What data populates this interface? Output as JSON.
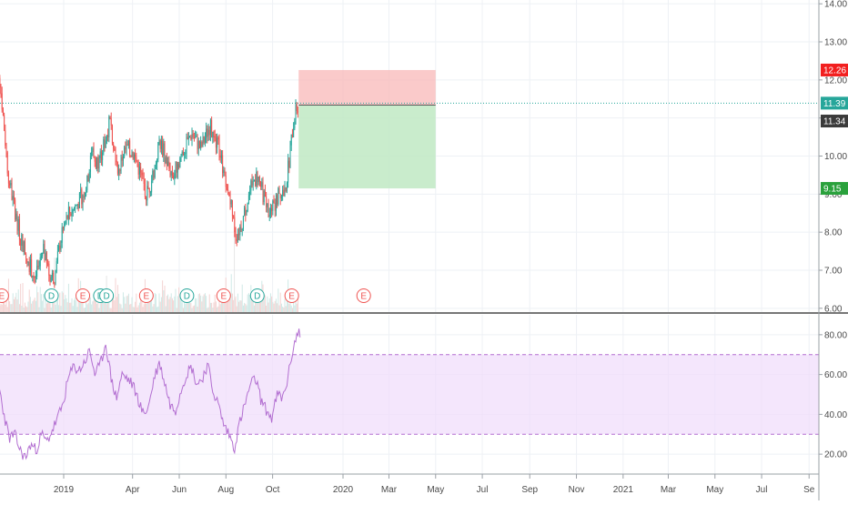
{
  "colors": {
    "up": "#26a69a",
    "down": "#ef5350",
    "rsi_line": "#b36fd1",
    "rsi_band": "#efdcfb",
    "stop_zone": "#f8b8b8",
    "target_zone": "#bfe9c3",
    "price_line": "#26a69a",
    "grid": "#eef1f5",
    "axis_text": "#4a4a4a",
    "event_earnings": "#ef5350",
    "event_dividend": "#26a69a"
  },
  "chart_data": [
    {
      "type": "candlestick",
      "ylim": [
        5.9,
        14.1
      ],
      "yticks": [
        {
          "value": 14,
          "label": "14.00"
        },
        {
          "value": 13,
          "label": "13.00"
        },
        {
          "value": 12,
          "label": "12.00"
        },
        {
          "value": 11,
          "label": "11.00"
        },
        {
          "value": 10,
          "label": "10.00"
        },
        {
          "value": 9,
          "label": "9.00"
        },
        {
          "value": 8,
          "label": "8.00"
        },
        {
          "value": 7,
          "label": "7.00"
        },
        {
          "value": 6,
          "label": "6.00"
        }
      ],
      "xaxis": {
        "ticks": [
          {
            "date": "2019-01-01",
            "label": "2019"
          },
          {
            "date": "2019-04-01",
            "label": "Apr"
          },
          {
            "date": "2019-06-01",
            "label": "Jun"
          },
          {
            "date": "2019-08-01",
            "label": "Aug"
          },
          {
            "date": "2019-10-01",
            "label": "Oct"
          },
          {
            "date": "2020-01-01",
            "label": "2020"
          },
          {
            "date": "2020-03-01",
            "label": "Mar"
          },
          {
            "date": "2020-05-01",
            "label": "May"
          },
          {
            "date": "2020-07-01",
            "label": "Jul"
          },
          {
            "date": "2020-09-01",
            "label": "Sep"
          },
          {
            "date": "2020-11-01",
            "label": "Nov"
          },
          {
            "date": "2021-01-01",
            "label": "2021"
          },
          {
            "date": "2021-03-01",
            "label": "Mar"
          },
          {
            "date": "2021-05-01",
            "label": "May"
          },
          {
            "date": "2021-07-01",
            "label": "Jul"
          },
          {
            "date": "2021-09-01",
            "label": "Se"
          }
        ]
      },
      "close_series": {
        "name": "",
        "points": [
          [
            "2018-10-01",
            13.2
          ],
          [
            "2018-10-05",
            12.7
          ],
          [
            "2018-10-10",
            11.9
          ],
          [
            "2018-10-15",
            10.8
          ],
          [
            "2018-10-20",
            9.6
          ],
          [
            "2018-10-25",
            9.0
          ],
          [
            "2018-10-30",
            8.5
          ],
          [
            "2018-11-05",
            7.9
          ],
          [
            "2018-11-10",
            7.6
          ],
          [
            "2018-11-15",
            7.3
          ],
          [
            "2018-11-20",
            7.0
          ],
          [
            "2018-11-25",
            6.8
          ],
          [
            "2018-12-01",
            7.1
          ],
          [
            "2018-12-06",
            7.5
          ],
          [
            "2018-12-11",
            7.0
          ],
          [
            "2018-12-16",
            6.8
          ],
          [
            "2018-12-21",
            6.9
          ],
          [
            "2018-12-27",
            7.7
          ],
          [
            "2019-01-02",
            8.2
          ],
          [
            "2019-01-08",
            8.5
          ],
          [
            "2019-01-14",
            8.6
          ],
          [
            "2019-01-20",
            8.8
          ],
          [
            "2019-01-26",
            9.0
          ],
          [
            "2019-02-01",
            9.3
          ],
          [
            "2019-02-06",
            10.2
          ],
          [
            "2019-02-12",
            9.8
          ],
          [
            "2019-02-18",
            10.0
          ],
          [
            "2019-02-24",
            10.4
          ],
          [
            "2019-03-02",
            10.9
          ],
          [
            "2019-03-08",
            10.3
          ],
          [
            "2019-03-14",
            9.6
          ],
          [
            "2019-03-20",
            10.1
          ],
          [
            "2019-03-26",
            10.2
          ],
          [
            "2019-04-01",
            10.1
          ],
          [
            "2019-04-07",
            9.8
          ],
          [
            "2019-04-13",
            9.4
          ],
          [
            "2019-04-19",
            9.0
          ],
          [
            "2019-04-25",
            9.3
          ],
          [
            "2019-05-01",
            9.8
          ],
          [
            "2019-05-06",
            10.4
          ],
          [
            "2019-05-12",
            10.1
          ],
          [
            "2019-05-18",
            9.7
          ],
          [
            "2019-05-24",
            9.5
          ],
          [
            "2019-05-30",
            9.8
          ],
          [
            "2019-06-05",
            10.1
          ],
          [
            "2019-06-11",
            10.3
          ],
          [
            "2019-06-17",
            10.6
          ],
          [
            "2019-06-23",
            10.4
          ],
          [
            "2019-06-29",
            10.2
          ],
          [
            "2019-07-05",
            10.5
          ],
          [
            "2019-07-11",
            10.8
          ],
          [
            "2019-07-17",
            10.4
          ],
          [
            "2019-07-23",
            10.2
          ],
          [
            "2019-07-29",
            9.6
          ],
          [
            "2019-08-04",
            9.2
          ],
          [
            "2019-08-09",
            8.5
          ],
          [
            "2019-08-14",
            7.9
          ],
          [
            "2019-08-19",
            8.1
          ],
          [
            "2019-08-24",
            8.4
          ],
          [
            "2019-08-30",
            8.9
          ],
          [
            "2019-09-05",
            9.3
          ],
          [
            "2019-09-11",
            9.5
          ],
          [
            "2019-09-17",
            9.1
          ],
          [
            "2019-09-23",
            8.7
          ],
          [
            "2019-09-29",
            8.5
          ],
          [
            "2019-10-05",
            8.8
          ],
          [
            "2019-10-11",
            9.1
          ],
          [
            "2019-10-17",
            9.0
          ],
          [
            "2019-10-22",
            9.8
          ],
          [
            "2019-10-26",
            10.5
          ],
          [
            "2019-10-30",
            11.1
          ],
          [
            "2019-11-04",
            11.39
          ]
        ]
      },
      "last_price": {
        "value": 11.39,
        "label": "11.39"
      },
      "current_price": {
        "value": 11.34,
        "label": "11.34"
      },
      "position_tool": {
        "start": "2019-11-04",
        "end": "2020-05-01",
        "entry": 11.34,
        "stop": {
          "value": 12.26,
          "label": "12.26"
        },
        "target": {
          "value": 9.15,
          "label": "9.15"
        }
      },
      "events": [
        {
          "date": "2018-10-12",
          "label": "E",
          "kind": "earnings"
        },
        {
          "date": "2018-12-16",
          "label": "D",
          "kind": "dividend"
        },
        {
          "date": "2019-01-26",
          "label": "E",
          "kind": "earnings"
        },
        {
          "date": "2019-02-18",
          "label": "D",
          "kind": "dividend"
        },
        {
          "date": "2019-02-26",
          "label": "D",
          "kind": "dividend"
        },
        {
          "date": "2019-04-19",
          "label": "E",
          "kind": "earnings"
        },
        {
          "date": "2019-06-11",
          "label": "D",
          "kind": "dividend"
        },
        {
          "date": "2019-07-29",
          "label": "E",
          "kind": "earnings"
        },
        {
          "date": "2019-09-11",
          "label": "D",
          "kind": "dividend"
        },
        {
          "date": "2019-10-26",
          "label": "E",
          "kind": "earnings"
        },
        {
          "date": "2020-01-28",
          "label": "E",
          "kind": "earnings"
        }
      ]
    },
    {
      "type": "line",
      "ylim": [
        10,
        90
      ],
      "yticks": [
        {
          "value": 80,
          "label": "80.00"
        },
        {
          "value": 60,
          "label": "60.00"
        },
        {
          "value": 40,
          "label": "40.00"
        },
        {
          "value": 20,
          "label": "20.00"
        }
      ],
      "band": [
        30,
        70
      ],
      "series": [
        {
          "name": "",
          "points": [
            [
              "2018-10-01",
              65
            ],
            [
              "2018-10-08",
              55
            ],
            [
              "2018-10-15",
              40
            ],
            [
              "2018-10-22",
              28
            ],
            [
              "2018-10-29",
              30
            ],
            [
              "2018-11-05",
              22
            ],
            [
              "2018-11-12",
              18
            ],
            [
              "2018-11-19",
              25
            ],
            [
              "2018-11-26",
              22
            ],
            [
              "2018-12-03",
              30
            ],
            [
              "2018-12-10",
              26
            ],
            [
              "2018-12-17",
              32
            ],
            [
              "2018-12-24",
              38
            ],
            [
              "2018-12-31",
              45
            ],
            [
              "2019-01-07",
              58
            ],
            [
              "2019-01-14",
              64
            ],
            [
              "2019-01-21",
              62
            ],
            [
              "2019-01-28",
              66
            ],
            [
              "2019-02-04",
              72
            ],
            [
              "2019-02-11",
              60
            ],
            [
              "2019-02-18",
              65
            ],
            [
              "2019-02-25",
              76
            ],
            [
              "2019-03-04",
              58
            ],
            [
              "2019-03-11",
              48
            ],
            [
              "2019-03-18",
              60
            ],
            [
              "2019-03-25",
              58
            ],
            [
              "2019-04-01",
              55
            ],
            [
              "2019-04-08",
              48
            ],
            [
              "2019-04-15",
              40
            ],
            [
              "2019-04-22",
              44
            ],
            [
              "2019-04-29",
              58
            ],
            [
              "2019-05-06",
              66
            ],
            [
              "2019-05-13",
              56
            ],
            [
              "2019-05-20",
              45
            ],
            [
              "2019-05-27",
              42
            ],
            [
              "2019-06-03",
              52
            ],
            [
              "2019-06-10",
              60
            ],
            [
              "2019-06-17",
              64
            ],
            [
              "2019-06-24",
              55
            ],
            [
              "2019-07-01",
              58
            ],
            [
              "2019-07-08",
              65
            ],
            [
              "2019-07-15",
              52
            ],
            [
              "2019-07-22",
              45
            ],
            [
              "2019-07-29",
              35
            ],
            [
              "2019-08-05",
              30
            ],
            [
              "2019-08-12",
              23
            ],
            [
              "2019-08-19",
              36
            ],
            [
              "2019-08-26",
              45
            ],
            [
              "2019-09-02",
              55
            ],
            [
              "2019-09-09",
              58
            ],
            [
              "2019-09-16",
              47
            ],
            [
              "2019-09-23",
              42
            ],
            [
              "2019-09-30",
              38
            ],
            [
              "2019-10-07",
              50
            ],
            [
              "2019-10-14",
              48
            ],
            [
              "2019-10-21",
              58
            ],
            [
              "2019-10-28",
              74
            ],
            [
              "2019-11-04",
              82
            ],
            [
              "2019-11-07",
              78
            ]
          ]
        }
      ]
    }
  ]
}
